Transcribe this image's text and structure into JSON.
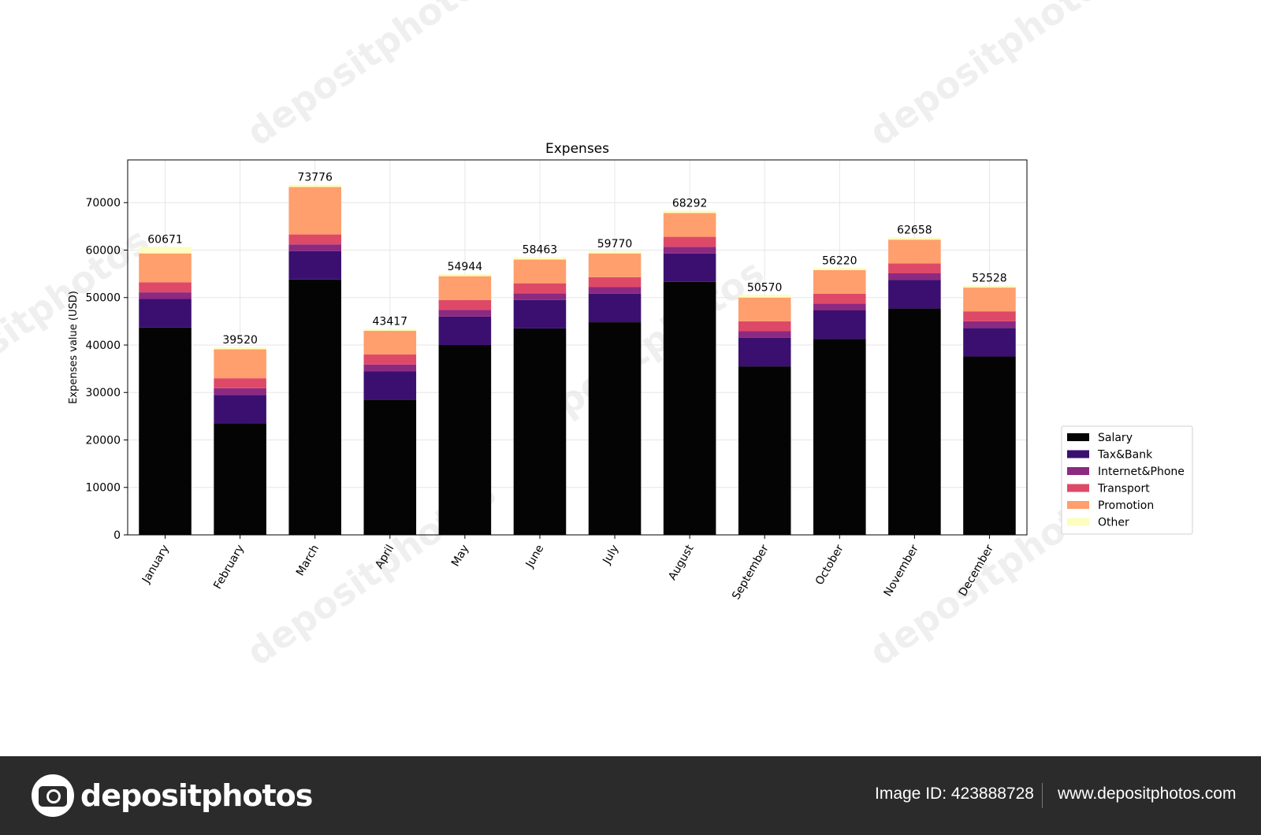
{
  "chart_data": {
    "type": "bar",
    "stacked": true,
    "title": "Expenses",
    "xlabel": "",
    "ylabel": "Expenses value (USD)",
    "ylim": [
      0,
      79000
    ],
    "yticks": [
      0,
      10000,
      20000,
      30000,
      40000,
      50000,
      60000,
      70000
    ],
    "grid": true,
    "legend_position": "right",
    "categories": [
      "January",
      "February",
      "March",
      "April",
      "May",
      "June",
      "July",
      "August",
      "September",
      "October",
      "November",
      "December"
    ],
    "totals": [
      60671,
      39520,
      73776,
      43417,
      54944,
      58463,
      59770,
      68292,
      50570,
      56220,
      62658,
      52528
    ],
    "series": [
      {
        "name": "Salary",
        "color": "#040404",
        "values": [
          43700,
          23500,
          53800,
          28500,
          40000,
          43500,
          44800,
          53300,
          35500,
          41300,
          47700,
          37600
        ]
      },
      {
        "name": "Tax&Bank",
        "color": "#3b0f70",
        "values": [
          6000,
          6000,
          6000,
          6000,
          6000,
          6000,
          6000,
          6000,
          6000,
          6000,
          6000,
          6000
        ]
      },
      {
        "name": "Internet&Phone",
        "color": "#8c2981",
        "values": [
          1400,
          1400,
          1400,
          1400,
          1400,
          1400,
          1400,
          1400,
          1400,
          1400,
          1400,
          1400
        ]
      },
      {
        "name": "Transport",
        "color": "#de4968",
        "values": [
          2100,
          2100,
          2100,
          2100,
          2100,
          2100,
          2100,
          2100,
          2100,
          2100,
          2100,
          2100
        ]
      },
      {
        "name": "Promotion",
        "color": "#fe9f6d",
        "values": [
          6100,
          6100,
          10000,
          5000,
          5000,
          5000,
          5000,
          5000,
          5000,
          5000,
          5000,
          5000
        ]
      },
      {
        "name": "Other",
        "color": "#fcfdbf",
        "values": [
          1371,
          420,
          476,
          417,
          444,
          463,
          470,
          492,
          570,
          420,
          458,
          428
        ]
      }
    ]
  },
  "watermark": {
    "text": "depositphotos"
  },
  "footer": {
    "logo_text": "depositphotos",
    "image_id": "Image ID: 423888728",
    "site": "www.depositphotos.com"
  }
}
